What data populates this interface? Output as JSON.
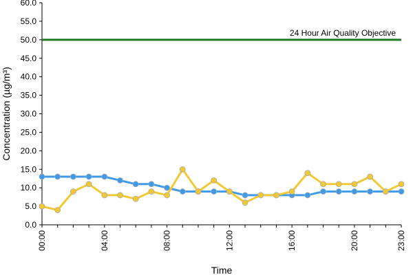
{
  "chart_data": {
    "type": "line",
    "title": "",
    "xlabel": "Time",
    "ylabel": "Concentration (µg/m³)",
    "ylim": [
      0,
      60
    ],
    "y_ticks": [
      0,
      5,
      10,
      15,
      20,
      25,
      30,
      35,
      40,
      45,
      50,
      55,
      60
    ],
    "y_tick_labels": [
      "0.0",
      "5.0",
      "10.0",
      "15.0",
      "20.0",
      "25.0",
      "30.0",
      "35.0",
      "40.0",
      "45.0",
      "50.0",
      "55.0",
      "60.0"
    ],
    "xlim": [
      0,
      23
    ],
    "x": [
      0,
      1,
      2,
      3,
      4,
      5,
      6,
      7,
      8,
      9,
      10,
      11,
      12,
      13,
      14,
      15,
      16,
      17,
      18,
      19,
      20,
      21,
      22,
      23
    ],
    "x_ticks": [
      0,
      4,
      8,
      12,
      16,
      20,
      23
    ],
    "x_tick_labels": [
      "00:00",
      "04:00",
      "08:00",
      "12:00",
      "16:00",
      "20:00",
      "23:00"
    ],
    "grid": false,
    "legend": "none",
    "series": [
      {
        "color": "#3d9be9",
        "values": [
          13,
          13,
          13,
          13,
          13,
          12,
          11,
          11,
          10,
          9,
          9,
          9,
          9,
          8,
          8,
          8,
          8,
          8,
          9,
          9,
          9,
          9,
          9,
          9
        ]
      },
      {
        "color": "#f2c935",
        "values": [
          5,
          4,
          9,
          11,
          8,
          8,
          7,
          9,
          8,
          15,
          9,
          12,
          9,
          6,
          8,
          8,
          9,
          14,
          11,
          11,
          11,
          13,
          9,
          11
        ]
      }
    ],
    "reference_line": {
      "value": 50,
      "label": "24 Hour Air Quality Objective",
      "color": "#1f7a1f"
    }
  }
}
